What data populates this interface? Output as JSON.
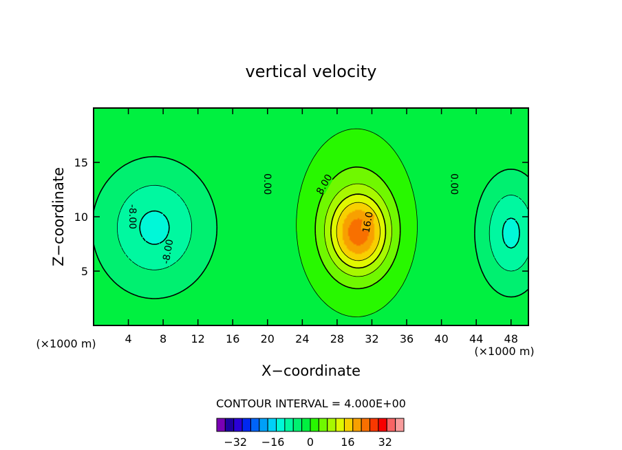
{
  "chart_data": {
    "type": "heatmap",
    "title": "vertical velocity",
    "xlabel": "X−coordinate",
    "ylabel": "Z−coordinate",
    "x_unit_left": "(×1000 m)",
    "x_unit_right": "(×1000 m)",
    "xlim": [
      0,
      50
    ],
    "ylim": [
      0,
      20
    ],
    "x_ticks": [
      4,
      8,
      12,
      16,
      20,
      24,
      28,
      32,
      36,
      40,
      44,
      48
    ],
    "y_ticks": [
      5,
      10,
      15
    ],
    "contour_interval_label": "CONTOUR INTERVAL = 4.000E+00",
    "contour_interval": 4,
    "contour_labels": [
      "0.00",
      "0.00",
      "8.00",
      "16.0",
      "-8.00",
      "-8.00"
    ],
    "colorbar": {
      "range": [
        -40,
        40
      ],
      "tick_values": [
        -32,
        -16,
        0,
        16,
        32
      ],
      "tick_labels": [
        "−32",
        "−16",
        "0",
        "16",
        "32"
      ],
      "colors": [
        "#7a00b4",
        "#1e00a0",
        "#2a00d8",
        "#0028f0",
        "#0064f8",
        "#00a0f8",
        "#00d0f8",
        "#00f8d8",
        "#00f8a0",
        "#00f070",
        "#00f040",
        "#28f800",
        "#70f800",
        "#a8f800",
        "#e0f800",
        "#f8d000",
        "#f8a000",
        "#f87000",
        "#f83800",
        "#f80000",
        "#f86464",
        "#f89c9c"
      ]
    },
    "field": {
      "background": 2,
      "features": [
        {
          "kind": "updraft",
          "x": 30.5,
          "z": 8.5,
          "sx": 3.2,
          "sz": 3.3,
          "peak": 20
        },
        {
          "kind": "updraft_halo",
          "x": 30.2,
          "z": 9.5,
          "sx": 5.5,
          "sz": 7.0,
          "peak": 9
        },
        {
          "kind": "downdraft",
          "x": 7,
          "z": 9,
          "sx": 5.5,
          "sz": 5.0,
          "peak": -11
        },
        {
          "kind": "downdraft",
          "x": 48,
          "z": 8.5,
          "sx": 3.2,
          "sz": 4.5,
          "peak": -11
        }
      ]
    }
  }
}
